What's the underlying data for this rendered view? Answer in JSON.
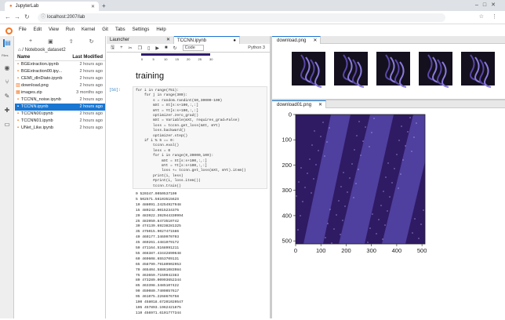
{
  "browser": {
    "tab_title": "JupyterLab",
    "url": "localhost:2007/lab"
  },
  "menu": [
    "File",
    "Edit",
    "View",
    "Run",
    "Kernel",
    "Git",
    "Tabs",
    "Settings",
    "Help"
  ],
  "sidebar_labels": {
    "files": "Files"
  },
  "file_browser": {
    "breadcrumb": "/ Notebook_dataset2",
    "col_name": "Name",
    "col_modified": "Last Modified",
    "files": [
      {
        "name": "BGExtraction.ipynb",
        "modified": "2 hours ago"
      },
      {
        "name": "BGExtraction00.ipy...",
        "modified": "2 hours ago"
      },
      {
        "name": "CEMI_dlnDiato.ipynb",
        "modified": "2 hours ago"
      },
      {
        "name": "download.png",
        "modified": "2 hours ago"
      },
      {
        "name": "images.zip",
        "modified": "3 months ago"
      },
      {
        "name": "TCCNN_noise.ipynb",
        "modified": "2 hours ago"
      },
      {
        "name": "TCCNN.ipynb",
        "modified": "2 hours ago",
        "selected": true
      },
      {
        "name": "TCCNN00.ipynb",
        "modified": "2 hours ago"
      },
      {
        "name": "TCCNN01.ipynb",
        "modified": "2 hours ago"
      },
      {
        "name": "UNet_Like.ipynb",
        "modified": "2 hours ago"
      }
    ]
  },
  "notebook": {
    "tabs": [
      {
        "label": "Launcher"
      },
      {
        "label": "TCCNN.ipynb"
      }
    ],
    "cell_type": "Code",
    "kernel": "Python 3",
    "mini_ticks": [
      "0",
      "5",
      "10",
      "15",
      "20",
      "25",
      "30"
    ],
    "heading": "training",
    "prompt": "[56]:",
    "code_lines": [
      "for i in range(751):",
      "    for j in range(300):",
      "        s = random.randint(60,30000-100)",
      "        mXt = Xt[s:s+100,:,:]",
      "        mYt = Yt[s:s+100,:,:]",
      "        optimizer.zero_grad()",
      "        mXt = Variable(mXt, requires_grad=False)",
      "        loss = tccnn.get_loss(mXt, mYt)",
      "        loss.backward()",
      "        optimizer.step()",
      "    if i % 5 == 0:",
      "        tccnn.eval()",
      "        less = 0",
      "        for i in range(0,30000,100):",
      "            mXt = Xt[s:s+100,:,:]",
      "            mYt = Yt[s:s+100,:,:]",
      "            loss += tccnn.get_loss(mXt, mYt).item()",
      "        print(i, less)",
      "        #print(i, loss.item())",
      "        tccnn.train()"
    ],
    "output_lines": [
      "0 520347.0050537109",
      "5 502571.5610351562S",
      "10 488091.24254927948",
      "15 489242.0015234375",
      "20 483922.392944330994",
      "25 483950.8473510742",
      "30 474139.69238281325",
      "35 475015.9027471586",
      "40 469177.3469970703",
      "45 469261.4481079172",
      "50 471164.5168991211",
      "55 466387.43442890648",
      "60 469608.6553709131",
      "65 458799.79180902953",
      "70 465404.58861083984",
      "75 463659.7150942383",
      "80 473289.00993652344",
      "85 463398.3485107422",
      "90 459080.7409057617",
      "95 461075.2268676758",
      "100 458018.67201020547",
      "105 457893.1962421875",
      "110 456971.6101777344"
    ]
  },
  "image_panel_top": {
    "tab_label": "download.png"
  },
  "image_panel_bottom": {
    "tab_label": "download01.png"
  },
  "chart_data": {
    "type": "heatmap",
    "title": "",
    "xlabel": "",
    "ylabel": "",
    "xlim": [
      0,
      512
    ],
    "ylim": [
      0,
      512
    ],
    "x_ticks": [
      0,
      100,
      200,
      300,
      400,
      500
    ],
    "y_ticks": [
      0,
      100,
      200,
      300,
      400,
      500
    ],
    "colormap": "viridis-purple",
    "colors": {
      "low": "#2f1a64",
      "mid": "#4f3f9e",
      "high": "#6a5acd"
    }
  }
}
